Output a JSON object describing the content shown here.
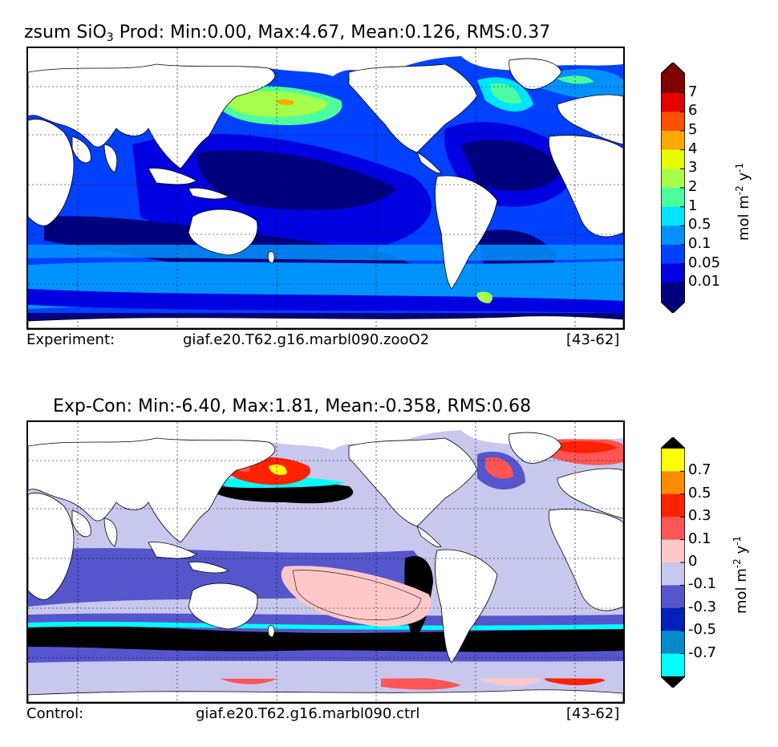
{
  "panels": {
    "top": {
      "title_prefix": "zsum SiO",
      "title_sub": "3",
      "title_rest": "  Prod: Min:0.00, Max:4.67, Mean:0.126, RMS:0.37",
      "footer_left": "Experiment:",
      "footer_center": "giaf.e20.T62.g16.marbl090.zooO2",
      "footer_right": "[43-62]",
      "colorbar": {
        "unit_text": "mol m",
        "unit_exp1": "-2",
        "unit_mid": " y",
        "unit_exp2": "-1",
        "levels": [
          "7",
          "6",
          "5",
          "4",
          "3",
          "2",
          "1",
          "0.5",
          "0.1",
          "0.05",
          "0.01"
        ],
        "colors": [
          "#800000",
          "#e50000",
          "#ff4f00",
          "#ffa800",
          "#e8ff00",
          "#a6ff4a",
          "#4cff9e",
          "#00e5ff",
          "#0093ff",
          "#0040ff",
          "#0000e1",
          "#00007f"
        ],
        "extend_top": "#800000",
        "extend_bottom": "#00007f"
      }
    },
    "bottom": {
      "title": "Exp-Con: Min:-6.40, Max:1.81, Mean:-0.358, RMS:0.68",
      "footer_left": "Control:",
      "footer_center": "giaf.e20.T62.g16.marbl090.ctrl",
      "footer_right": "[43-62]",
      "colorbar": {
        "unit_text": "mol m",
        "unit_exp1": "-2",
        "unit_mid": " y",
        "unit_exp2": "-1",
        "levels": [
          "0.7",
          "0.5",
          "0.3",
          "0.1",
          "0",
          "-0.1",
          "-0.3",
          "-0.5",
          "-0.7"
        ],
        "colors": [
          "#ffff00",
          "#ff8c00",
          "#ff2200",
          "#ff5555",
          "#ffc8c8",
          "#c8c8ee",
          "#5555cc",
          "#0022bb",
          "#008ccc",
          "#00ffff"
        ],
        "extend_top": "#000000",
        "extend_bottom": "#000000"
      }
    }
  }
}
